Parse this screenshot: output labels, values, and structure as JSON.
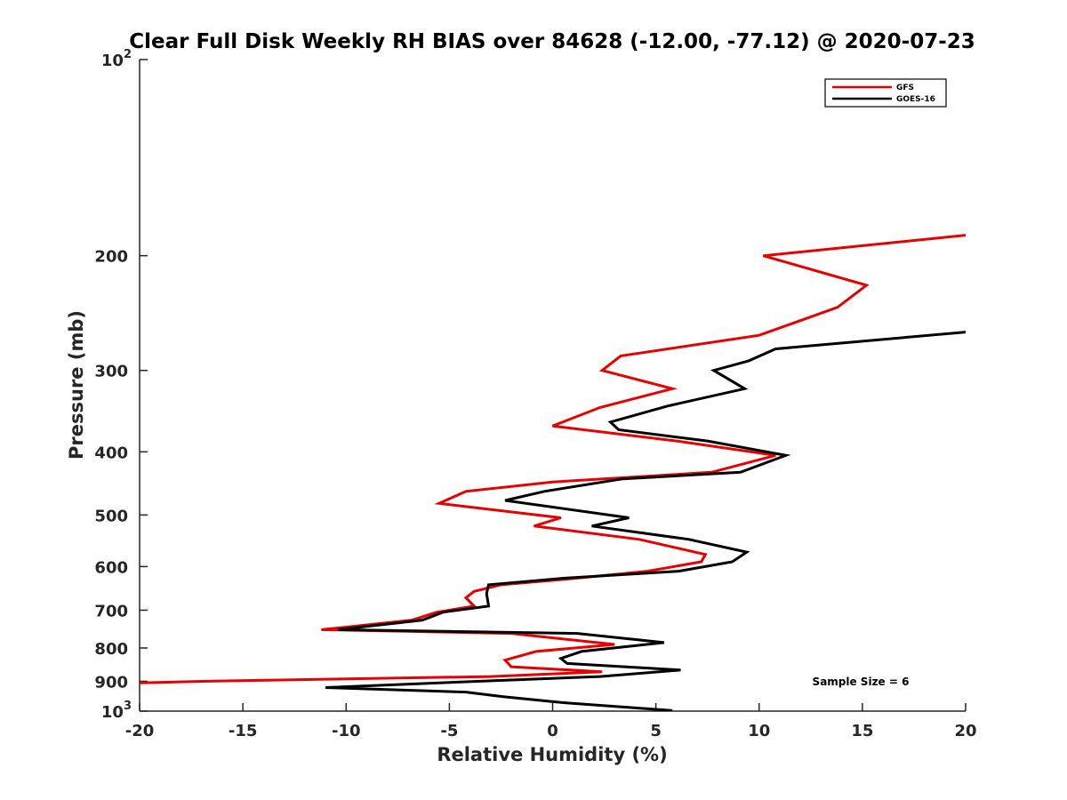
{
  "chart_data": {
    "type": "line",
    "title": "Clear Full Disk Weekly RH BIAS over 84628 (-12.00, -77.12) @ 2020-07-23",
    "xlabel": "Relative Humidity (%)",
    "ylabel": "Pressure (mb)",
    "xlim": [
      -20,
      20
    ],
    "ylim": [
      100,
      1000
    ],
    "yscale": "log",
    "y_reversed": true,
    "x_ticks": [
      {
        "value": -20,
        "label": "-20"
      },
      {
        "value": -15,
        "label": "-15"
      },
      {
        "value": -10,
        "label": "-10"
      },
      {
        "value": -5,
        "label": "-5"
      },
      {
        "value": 0,
        "label": "0"
      },
      {
        "value": 5,
        "label": "5"
      },
      {
        "value": 10,
        "label": "10"
      },
      {
        "value": 15,
        "label": "15"
      },
      {
        "value": 20,
        "label": "20"
      }
    ],
    "y_ticks": [
      {
        "value": 100,
        "base": "10",
        "exp": "2"
      },
      {
        "value": 200,
        "label": "200"
      },
      {
        "value": 300,
        "label": "300"
      },
      {
        "value": 400,
        "label": "400"
      },
      {
        "value": 500,
        "label": "500"
      },
      {
        "value": 600,
        "label": "600"
      },
      {
        "value": 700,
        "label": "700"
      },
      {
        "value": 800,
        "label": "800"
      },
      {
        "value": 900,
        "label": "900"
      },
      {
        "value": 1000,
        "base": "10",
        "exp": "3"
      }
    ],
    "legend_position": "top-right",
    "annotation": "Sample Size = 6",
    "series": [
      {
        "name": "GFS",
        "color": "#e60000",
        "points": [
          [
            20.0,
            186
          ],
          [
            10.2,
            200
          ],
          [
            15.2,
            222
          ],
          [
            13.8,
            240
          ],
          [
            10.0,
            265
          ],
          [
            3.3,
            285
          ],
          [
            2.4,
            300
          ],
          [
            5.8,
            320
          ],
          [
            2.3,
            342
          ],
          [
            0.0,
            365
          ],
          [
            6.0,
            385
          ],
          [
            10.8,
            405
          ],
          [
            7.7,
            430
          ],
          [
            0.0,
            445
          ],
          [
            -4.2,
            460
          ],
          [
            -5.5,
            480
          ],
          [
            0.4,
            505
          ],
          [
            -0.9,
            520
          ],
          [
            4.2,
            545
          ],
          [
            7.4,
            575
          ],
          [
            7.2,
            590
          ],
          [
            4.6,
            610
          ],
          [
            1.2,
            625
          ],
          [
            -2.5,
            640
          ],
          [
            -3.8,
            655
          ],
          [
            -4.2,
            670
          ],
          [
            -3.8,
            690
          ],
          [
            -5.6,
            705
          ],
          [
            -6.8,
            725
          ],
          [
            -11.2,
            750
          ],
          [
            -2.0,
            760
          ],
          [
            3.0,
            790
          ],
          [
            -0.8,
            810
          ],
          [
            -2.3,
            835
          ],
          [
            -2.0,
            855
          ],
          [
            2.4,
            870
          ],
          [
            -3.0,
            885
          ],
          [
            -17.0,
            900
          ],
          [
            -20.0,
            905
          ]
        ]
      },
      {
        "name": "GOES-16",
        "color": "#000000",
        "points": [
          [
            20.0,
            262
          ],
          [
            10.8,
            278
          ],
          [
            9.5,
            290
          ],
          [
            7.8,
            300
          ],
          [
            9.3,
            320
          ],
          [
            5.6,
            340
          ],
          [
            2.8,
            360
          ],
          [
            3.2,
            370
          ],
          [
            7.5,
            385
          ],
          [
            11.3,
            405
          ],
          [
            9.1,
            430
          ],
          [
            3.4,
            440
          ],
          [
            -0.4,
            460
          ],
          [
            -2.3,
            475
          ],
          [
            3.7,
            505
          ],
          [
            1.9,
            520
          ],
          [
            6.6,
            545
          ],
          [
            9.4,
            570
          ],
          [
            8.7,
            590
          ],
          [
            6.1,
            610
          ],
          [
            0.6,
            625
          ],
          [
            -3.1,
            640
          ],
          [
            -3.2,
            660
          ],
          [
            -3.1,
            690
          ],
          [
            -5.3,
            705
          ],
          [
            -6.3,
            725
          ],
          [
            -10.4,
            750
          ],
          [
            1.2,
            760
          ],
          [
            5.4,
            785
          ],
          [
            1.4,
            810
          ],
          [
            0.4,
            830
          ],
          [
            0.7,
            845
          ],
          [
            6.2,
            865
          ],
          [
            2.3,
            885
          ],
          [
            -5.5,
            905
          ],
          [
            -11.0,
            920
          ],
          [
            -4.2,
            935
          ],
          [
            -2.4,
            950
          ],
          [
            0.4,
            970
          ],
          [
            5.8,
            998
          ]
        ]
      }
    ]
  },
  "colors": {
    "axis": "#262626",
    "legend_border": "#000000"
  }
}
